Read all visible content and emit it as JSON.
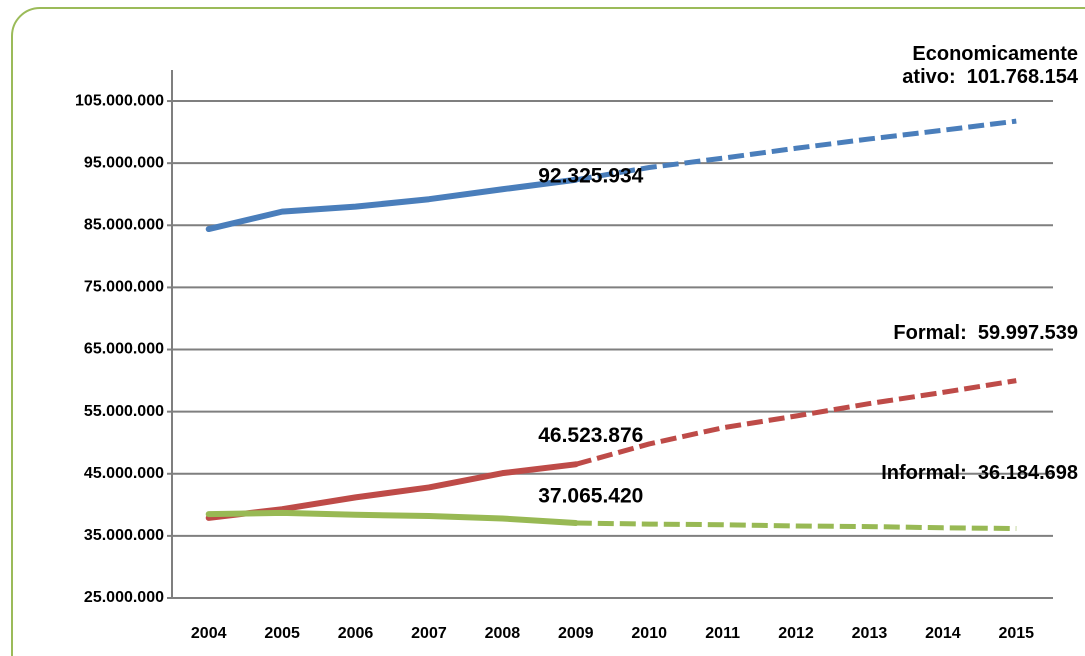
{
  "chart_data": {
    "type": "line",
    "categories": [
      "2004",
      "2005",
      "2006",
      "2007",
      "2008",
      "2009",
      "2010",
      "2011",
      "2012",
      "2013",
      "2014",
      "2015"
    ],
    "dashed_after": "2009",
    "series": [
      {
        "name": "Economicamente ativo:",
        "color": "#4a7ebb",
        "values": [
          84400000,
          87200000,
          88000000,
          89200000,
          90800000,
          92325934,
          94300000,
          95800000,
          97400000,
          98900000,
          100300000,
          101768154
        ],
        "value_labels": [
          null,
          null,
          null,
          null,
          null,
          "92.325.934",
          null,
          null,
          null,
          null,
          null,
          "101.768.154"
        ]
      },
      {
        "name": "Formal:",
        "color": "#be4b48",
        "values": [
          37900000,
          39300000,
          41200000,
          42800000,
          45100000,
          46523876,
          49800000,
          52400000,
          54300000,
          56300000,
          58100000,
          59997539
        ],
        "value_labels": [
          null,
          null,
          null,
          null,
          null,
          "46.523.876",
          null,
          null,
          null,
          null,
          null,
          "59.997.539"
        ]
      },
      {
        "name": "Informal:",
        "color": "#98b954",
        "values": [
          38500000,
          38700000,
          38400000,
          38200000,
          37800000,
          37065420,
          36900000,
          36800000,
          36600000,
          36500000,
          36300000,
          36184698
        ],
        "value_labels": [
          null,
          null,
          null,
          null,
          null,
          "37.065.420",
          null,
          null,
          null,
          null,
          null,
          "36.184.698"
        ]
      }
    ],
    "ylim": [
      25000000,
      110000000
    ],
    "yticks": [
      {
        "value": 25000000,
        "label": "25.000.000"
      },
      {
        "value": 35000000,
        "label": "35.000.000"
      },
      {
        "value": 45000000,
        "label": "45.000.000"
      },
      {
        "value": 55000000,
        "label": "55.000.000"
      },
      {
        "value": 65000000,
        "label": "65.000.000"
      },
      {
        "value": 75000000,
        "label": "75.000.000"
      },
      {
        "value": 85000000,
        "label": "85.000.000"
      },
      {
        "value": 95000000,
        "label": "95.000.000"
      },
      {
        "value": 105000000,
        "label": "105.000.000"
      }
    ],
    "grid": true
  }
}
